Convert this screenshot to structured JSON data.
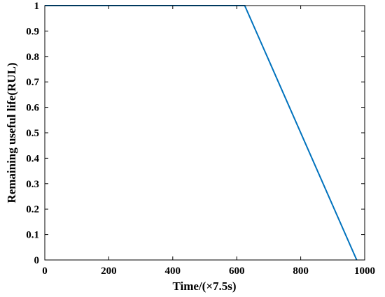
{
  "chart_data": {
    "type": "line",
    "title": "",
    "xlabel": "Time/(×7.5s)",
    "ylabel": "Remaining useful life(RUL)",
    "xlim": [
      0,
      1000
    ],
    "ylim": [
      0,
      1
    ],
    "xticks": [
      0,
      200,
      400,
      600,
      800,
      1000
    ],
    "yticks": [
      0,
      0.1,
      0.2,
      0.3,
      0.4,
      0.5,
      0.6,
      0.7,
      0.8,
      0.9,
      1
    ],
    "grid": false,
    "series": [
      {
        "color": "#0072BD",
        "x": [
          0,
          625,
          975
        ],
        "y": [
          1,
          1,
          0
        ]
      }
    ]
  }
}
